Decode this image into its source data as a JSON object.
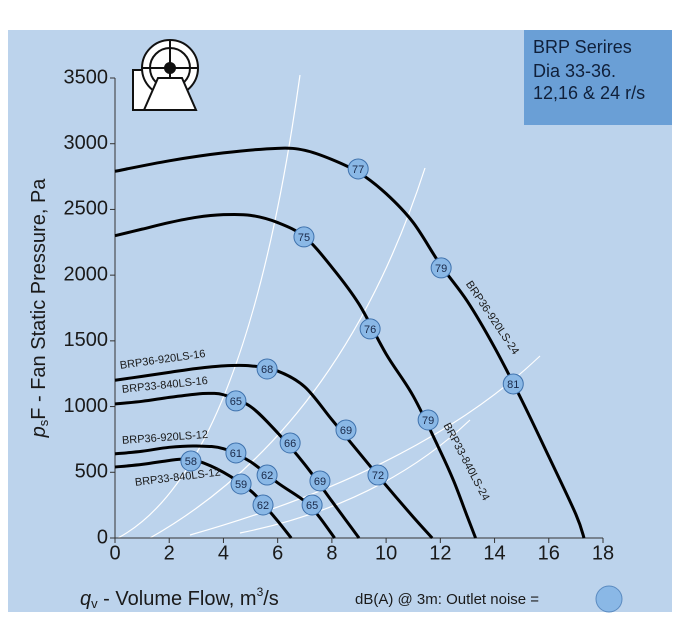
{
  "chart_data": {
    "type": "line",
    "title_lines": [
      "BRP Serires",
      "Dia 33-36.",
      "12,16 & 24 r/s"
    ],
    "ylabel_parts": [
      "p",
      "s",
      "F - Fan Static Pressure, Pa"
    ],
    "xlabel_parts": [
      "q",
      "v",
      " - Volume Flow, m",
      "3",
      "/s"
    ],
    "legend_text": "dB(A) @ 3m:  Outlet noise  =",
    "marker_color": "#8ab8e6",
    "xlim": [
      0,
      18
    ],
    "ylim": [
      0,
      3500
    ],
    "xticks": [
      0,
      2,
      4,
      6,
      8,
      10,
      12,
      14,
      16,
      18
    ],
    "yticks": [
      0,
      500,
      1000,
      1500,
      2000,
      2500,
      3000,
      3500
    ],
    "series": [
      {
        "name": "BRP36-920LS-24",
        "color": "#000000",
        "x": [
          0,
          2,
          4,
          6,
          7,
          8,
          9,
          10,
          11,
          12,
          13,
          14,
          15,
          16,
          17,
          17.3
        ],
        "values": [
          2790,
          2870,
          2930,
          2965,
          2950,
          2880,
          2780,
          2620,
          2400,
          2080,
          1800,
          1450,
          1050,
          620,
          180,
          0
        ],
        "markers": [
          {
            "x": 8.97,
            "y": 2808,
            "db": 77
          },
          {
            "x": 12.03,
            "y": 2055,
            "db": 79
          },
          {
            "x": 14.69,
            "y": 1172,
            "db": 81
          }
        ]
      },
      {
        "name": "BRP33-840LS-24",
        "color": "#000000",
        "x": [
          0,
          1,
          2,
          3,
          4,
          5,
          6,
          7,
          8,
          9,
          10,
          11,
          12,
          12.5,
          13,
          13.3
        ],
        "values": [
          2300,
          2350,
          2400,
          2440,
          2460,
          2455,
          2400,
          2290,
          2060,
          1780,
          1400,
          1080,
          660,
          430,
          160,
          0
        ],
        "markers": [
          {
            "x": 6.97,
            "y": 2291,
            "db": 75
          },
          {
            "x": 9.41,
            "y": 1591,
            "db": 76
          },
          {
            "x": 11.55,
            "y": 898,
            "db": 79
          }
        ]
      },
      {
        "name": "BRP36-920LS-16",
        "color": "#000000",
        "x": [
          0,
          1,
          2,
          3,
          4,
          5,
          6,
          7,
          8,
          9,
          10,
          11,
          11.7
        ],
        "values": [
          1200,
          1230,
          1260,
          1290,
          1310,
          1310,
          1270,
          1150,
          900,
          650,
          400,
          160,
          0
        ],
        "markers": [
          {
            "x": 5.61,
            "y": 1286,
            "db": 68
          },
          {
            "x": 8.52,
            "y": 822,
            "db": 69
          },
          {
            "x": 9.7,
            "y": 479,
            "db": 72
          }
        ]
      },
      {
        "name": "BRP33-840LS-16",
        "color": "#000000",
        "x": [
          0,
          1,
          2,
          3,
          3.5,
          4,
          5,
          6,
          7,
          8,
          8.5,
          9
        ],
        "values": [
          1020,
          1040,
          1070,
          1095,
          1100,
          1090,
          1000,
          800,
          560,
          280,
          140,
          0
        ],
        "markers": [
          {
            "x": 4.46,
            "y": 1043,
            "db": 65
          },
          {
            "x": 6.46,
            "y": 723,
            "db": 66
          },
          {
            "x": 7.56,
            "y": 434,
            "db": 69
          }
        ]
      },
      {
        "name": "BRP36-920LS-12",
        "color": "#000000",
        "x": [
          0,
          1,
          2,
          3,
          4,
          5,
          6,
          7,
          7.5,
          8.1
        ],
        "values": [
          640,
          660,
          690,
          700,
          680,
          580,
          420,
          280,
          170,
          0
        ],
        "markers": [
          {
            "x": 4.46,
            "y": 647,
            "db": 61
          },
          {
            "x": 5.61,
            "y": 479,
            "db": 62
          },
          {
            "x": 7.27,
            "y": 251,
            "db": 65
          }
        ]
      },
      {
        "name": "BRP33-840LS-12",
        "color": "#000000",
        "x": [
          0,
          1,
          2,
          2.5,
          3,
          4,
          5,
          5.5,
          6,
          6.5
        ],
        "values": [
          540,
          560,
          590,
          600,
          590,
          500,
          360,
          250,
          130,
          0
        ],
        "markers": [
          {
            "x": 2.8,
            "y": 586,
            "db": 58
          },
          {
            "x": 4.65,
            "y": 411,
            "db": 59
          },
          {
            "x": 5.46,
            "y": 251,
            "db": 62
          }
        ]
      }
    ]
  }
}
